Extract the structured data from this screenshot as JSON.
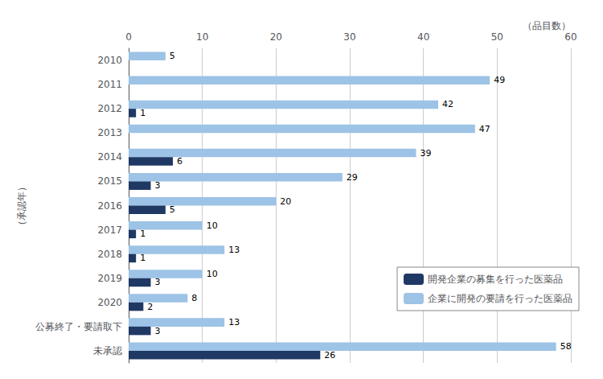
{
  "chart_data": {
    "type": "bar",
    "orientation": "horizontal",
    "xlabel": "（品目数）",
    "ylabel": "（承認年）",
    "categories": [
      "2010",
      "2011",
      "2012",
      "2013",
      "2014",
      "2015",
      "2016",
      "2017",
      "2018",
      "2019",
      "2020",
      "公募終了・要請取下",
      "未承認"
    ],
    "series": [
      {
        "name": "開発企業の募集を行った医薬品",
        "color": "#1f3864",
        "values": [
          0,
          0,
          1,
          0,
          6,
          3,
          5,
          1,
          1,
          3,
          2,
          3,
          26
        ],
        "value_labels": [
          null,
          null,
          "1",
          null,
          "6",
          "3",
          "5",
          "1",
          "1",
          "3",
          "2",
          "3",
          "26"
        ]
      },
      {
        "name": "企業に開発の要請を行った医薬品",
        "color": "#9dc3e6",
        "values": [
          5,
          49,
          42,
          47,
          39,
          29,
          20,
          10,
          13,
          10,
          8,
          13,
          58
        ],
        "value_labels": [
          "5",
          "49",
          "42",
          "47",
          "39",
          "29",
          "20",
          "10",
          "13",
          "10",
          "8",
          "13",
          "58"
        ]
      }
    ],
    "xlim": [
      0,
      60
    ],
    "xticks": [
      0,
      10,
      20,
      30,
      40,
      50,
      60
    ],
    "grid": true,
    "legend": "lower right",
    "data_labels": true
  }
}
